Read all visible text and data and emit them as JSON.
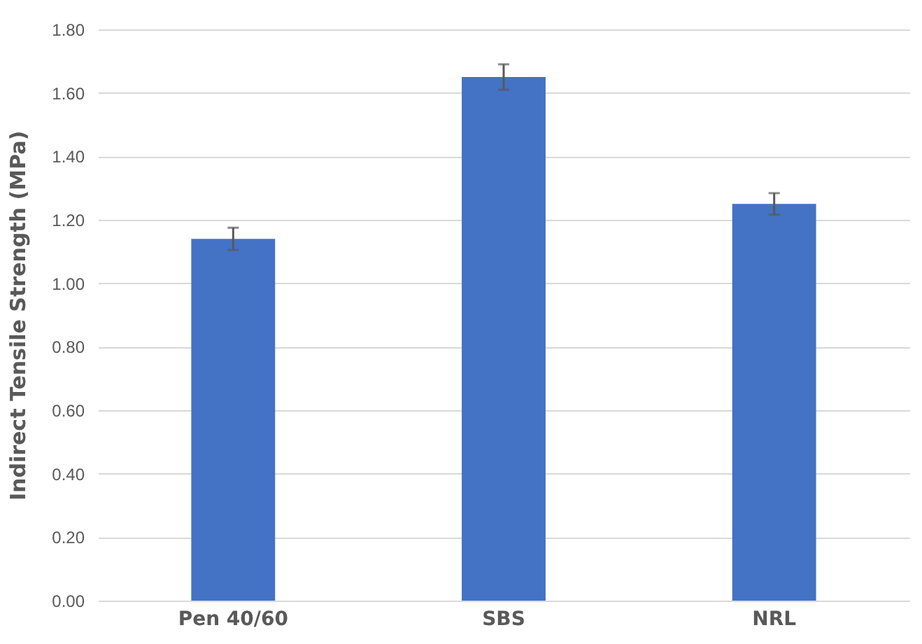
{
  "chart_data": {
    "type": "bar",
    "ylabel": "Indirect Tensile Strength (MPa)",
    "categories": [
      "Pen 40/60",
      "SBS",
      "NRL"
    ],
    "values": [
      1.14,
      1.65,
      1.25
    ],
    "errors": [
      0.035,
      0.04,
      0.034
    ],
    "color": "#4472c4",
    "ylim": [
      0,
      1.8
    ],
    "yticks": [
      {
        "value": 0,
        "label": "0.00"
      },
      {
        "value": 0.2,
        "label": "0.20"
      },
      {
        "value": 0.4,
        "label": "0.40"
      },
      {
        "value": 0.6,
        "label": "0.60"
      },
      {
        "value": 0.8,
        "label": "0.80"
      },
      {
        "value": 1.0,
        "label": "1.00"
      },
      {
        "value": 1.2,
        "label": "1.20"
      },
      {
        "value": 1.4,
        "label": "1.40"
      },
      {
        "value": 1.6,
        "label": "1.60"
      },
      {
        "value": 1.8,
        "label": "1.80"
      }
    ],
    "grid": "y"
  }
}
